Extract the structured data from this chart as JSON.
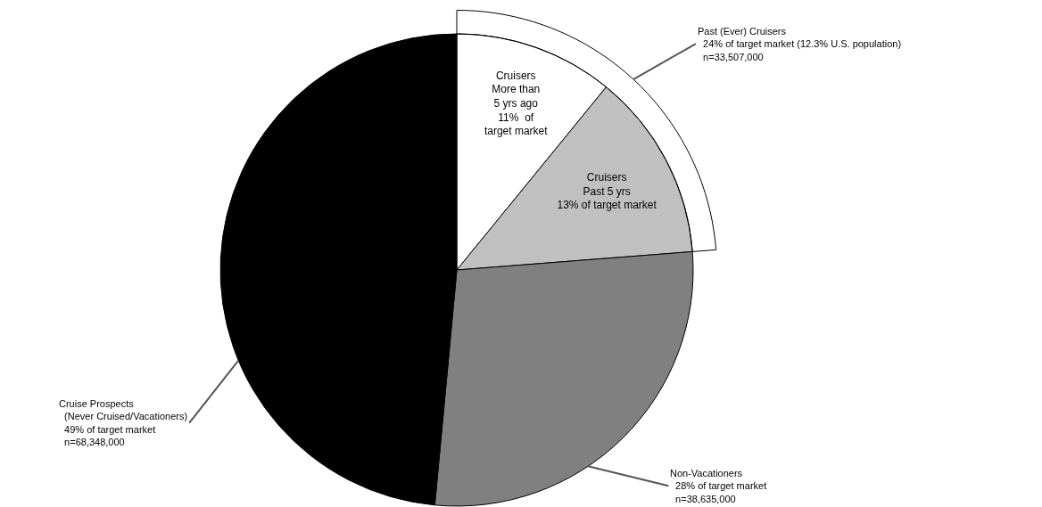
{
  "chart_data": {
    "type": "pie",
    "categories": [
      "Cruisers\nMore than\n5 yrs ago\n11%  of\ntarget market",
      "Cruisers\nPast 5 yrs\n13% of target market",
      "Non-Vacationers\n  28% of target market\n  n=38,635,000",
      "Cruise Prospects\n  (Never Cruised/Vacationers)\n  49% of target market\n  n=68,348,000"
    ],
    "values": [
      11,
      13,
      28,
      49
    ],
    "colors": [
      "#ffffff",
      "#c0c0c0",
      "#808080",
      "#000000"
    ],
    "annotations": [
      "Past (Ever) Cruisers\n  24% of target market (12.3% U.S. population)\n  n=33,507,000"
    ]
  }
}
